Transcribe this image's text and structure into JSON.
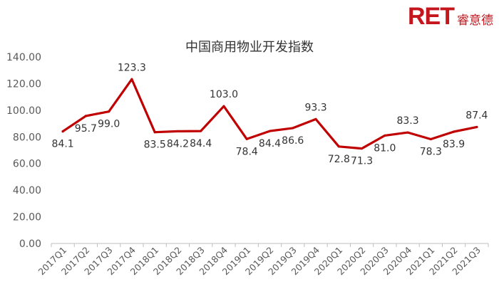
{
  "logo": {
    "mark": "RET",
    "name": "睿意德"
  },
  "chart_data": {
    "type": "line",
    "title": "中国商用物业开发指数",
    "xlabel": "",
    "ylabel": "",
    "categories": [
      "2017Q1",
      "2017Q2",
      "2017Q3",
      "2017Q4",
      "2018Q1",
      "2018Q2",
      "2018Q3",
      "2018Q4",
      "2019Q1",
      "2019Q2",
      "2019Q3",
      "2019Q4",
      "2020Q1",
      "2020Q2",
      "2020Q3",
      "2020Q4",
      "2021Q1",
      "2021Q2",
      "2021Q3"
    ],
    "values": [
      84.1,
      95.7,
      99.0,
      123.3,
      83.5,
      84.2,
      84.4,
      103.0,
      78.4,
      84.4,
      86.6,
      93.3,
      72.8,
      71.3,
      81.0,
      83.3,
      78.3,
      83.9,
      87.4
    ],
    "data_labels": [
      "84.1",
      "95.7",
      "99.0",
      "123.3",
      "83.5",
      "84.2",
      "84.4",
      "103.0",
      "78.4",
      "84.4",
      "86.6",
      "93.3",
      "72.8",
      "71.3",
      "81.0",
      "83.3",
      "78.3",
      "83.9",
      "87.4"
    ],
    "yticks": [
      "0.00",
      "20.00",
      "40.00",
      "60.00",
      "80.00",
      "100.00",
      "120.00",
      "140.00"
    ],
    "ylim": [
      0,
      140
    ],
    "grid": false,
    "legend": "none",
    "line_color": "#c00000"
  }
}
